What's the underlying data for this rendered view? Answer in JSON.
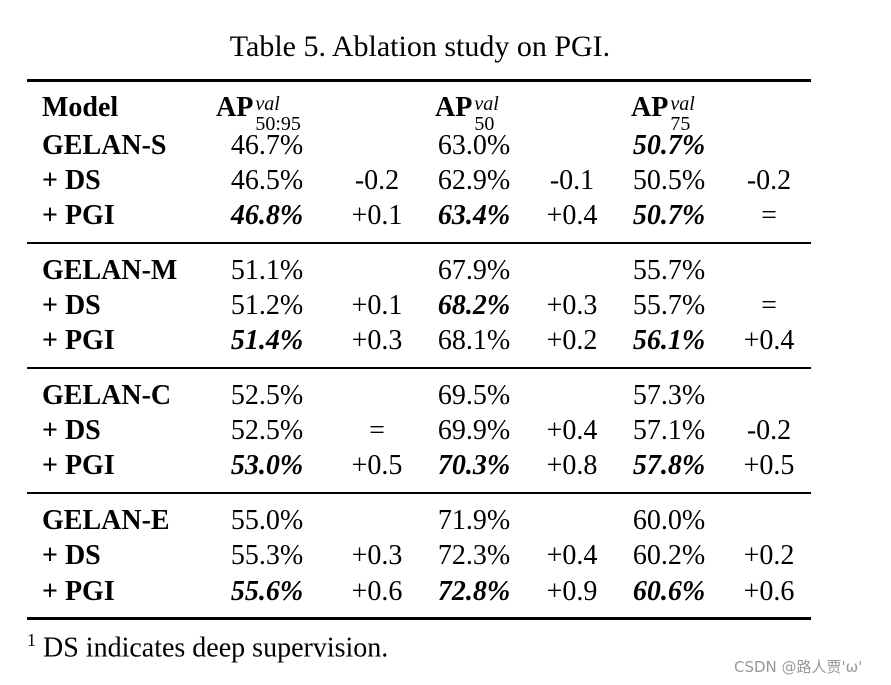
{
  "caption": "Table 5. Ablation study on PGI.",
  "header": {
    "model": "Model",
    "col1": {
      "base": "AP",
      "sup": "val",
      "sub": "50:95"
    },
    "col2": {
      "base": "AP",
      "sup": "val",
      "sub": "50"
    },
    "col3": {
      "base": "AP",
      "sup": "val",
      "sub": "75"
    }
  },
  "groups": [
    {
      "rows": [
        {
          "model": "GELAN-S",
          "ap1": "46.7%",
          "d1": "",
          "ap2": "63.0%",
          "d2": "",
          "ap3": "50.7%",
          "d3": ""
        },
        {
          "model": "+ DS",
          "ap1": "46.5%",
          "d1": "-0.2",
          "ap2": "62.9%",
          "d2": "-0.1",
          "ap3": "50.5%",
          "d3": "-0.2"
        },
        {
          "model": "+ PGI",
          "ap1": "46.8%",
          "d1": "+0.1",
          "ap2": "63.4%",
          "d2": "+0.4",
          "ap3": "50.7%",
          "d3": "="
        }
      ]
    },
    {
      "rows": [
        {
          "model": "GELAN-M",
          "ap1": "51.1%",
          "d1": "",
          "ap2": "67.9%",
          "d2": "",
          "ap3": "55.7%",
          "d3": ""
        },
        {
          "model": "+ DS",
          "ap1": "51.2%",
          "d1": "+0.1",
          "ap2": "68.2%",
          "d2": "+0.3",
          "ap3": "55.7%",
          "d3": "="
        },
        {
          "model": "+ PGI",
          "ap1": "51.4%",
          "d1": "+0.3",
          "ap2": "68.1%",
          "d2": "+0.2",
          "ap3": "56.1%",
          "d3": "+0.4"
        }
      ]
    },
    {
      "rows": [
        {
          "model": "GELAN-C",
          "ap1": "52.5%",
          "d1": "",
          "ap2": "69.5%",
          "d2": "",
          "ap3": "57.3%",
          "d3": ""
        },
        {
          "model": "+ DS",
          "ap1": "52.5%",
          "d1": "=",
          "ap2": "69.9%",
          "d2": "+0.4",
          "ap3": "57.1%",
          "d3": "-0.2"
        },
        {
          "model": "+ PGI",
          "ap1": "53.0%",
          "d1": "+0.5",
          "ap2": "70.3%",
          "d2": "+0.8",
          "ap3": "57.8%",
          "d3": "+0.5"
        }
      ]
    },
    {
      "rows": [
        {
          "model": "GELAN-E",
          "ap1": "55.0%",
          "d1": "",
          "ap2": "71.9%",
          "d2": "",
          "ap3": "60.0%",
          "d3": ""
        },
        {
          "model": "+ DS",
          "ap1": "55.3%",
          "d1": "+0.3",
          "ap2": "72.3%",
          "d2": "+0.4",
          "ap3": "60.2%",
          "d3": "+0.2"
        },
        {
          "model": "+ PGI",
          "ap1": "55.6%",
          "d1": "+0.6",
          "ap2": "72.8%",
          "d2": "+0.9",
          "ap3": "60.6%",
          "d3": "+0.6"
        }
      ]
    }
  ],
  "footnote": {
    "mark": "1",
    "text": " DS indicates deep supervision."
  },
  "watermark": "CSDN @路人贾'ω'"
}
